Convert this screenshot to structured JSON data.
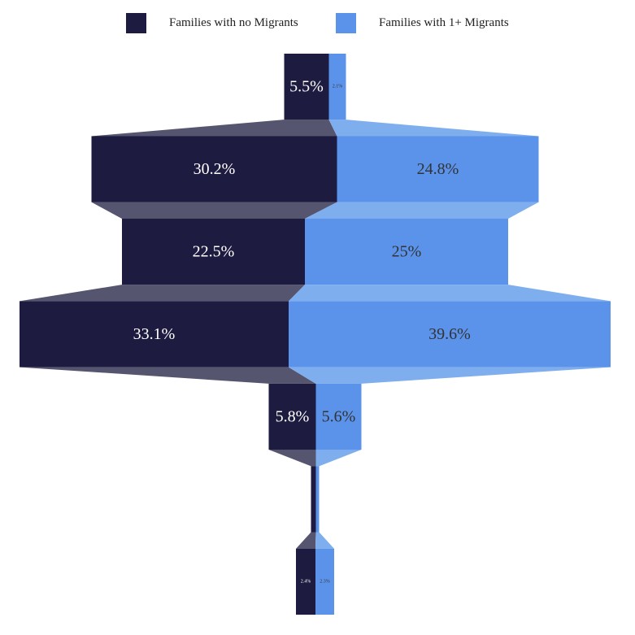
{
  "chart_data": {
    "type": "funnel",
    "legend_position": "top-center",
    "series": [
      {
        "name": "Families with no Migrants",
        "color": "#1e1b40",
        "connector_color": "#55556f",
        "label_color": "#ffffff",
        "values": [
          5.5,
          30.2,
          22.5,
          33.1,
          5.8,
          0.6,
          2.4
        ],
        "labels": [
          "5.5%",
          "30.2%",
          "22.5%",
          "33.1%",
          "5.8%",
          "",
          "2.4%"
        ]
      },
      {
        "name": "Families with 1+ Migrants",
        "color": "#5b93ea",
        "connector_color": "#7faeee",
        "label_color": "#333333",
        "values": [
          2.1,
          24.8,
          25,
          39.6,
          5.6,
          0.4,
          2.3
        ],
        "labels": [
          "2.1%",
          "24.8%",
          "25%",
          "39.6%",
          "5.6%",
          "",
          "2.3%"
        ]
      }
    ]
  }
}
